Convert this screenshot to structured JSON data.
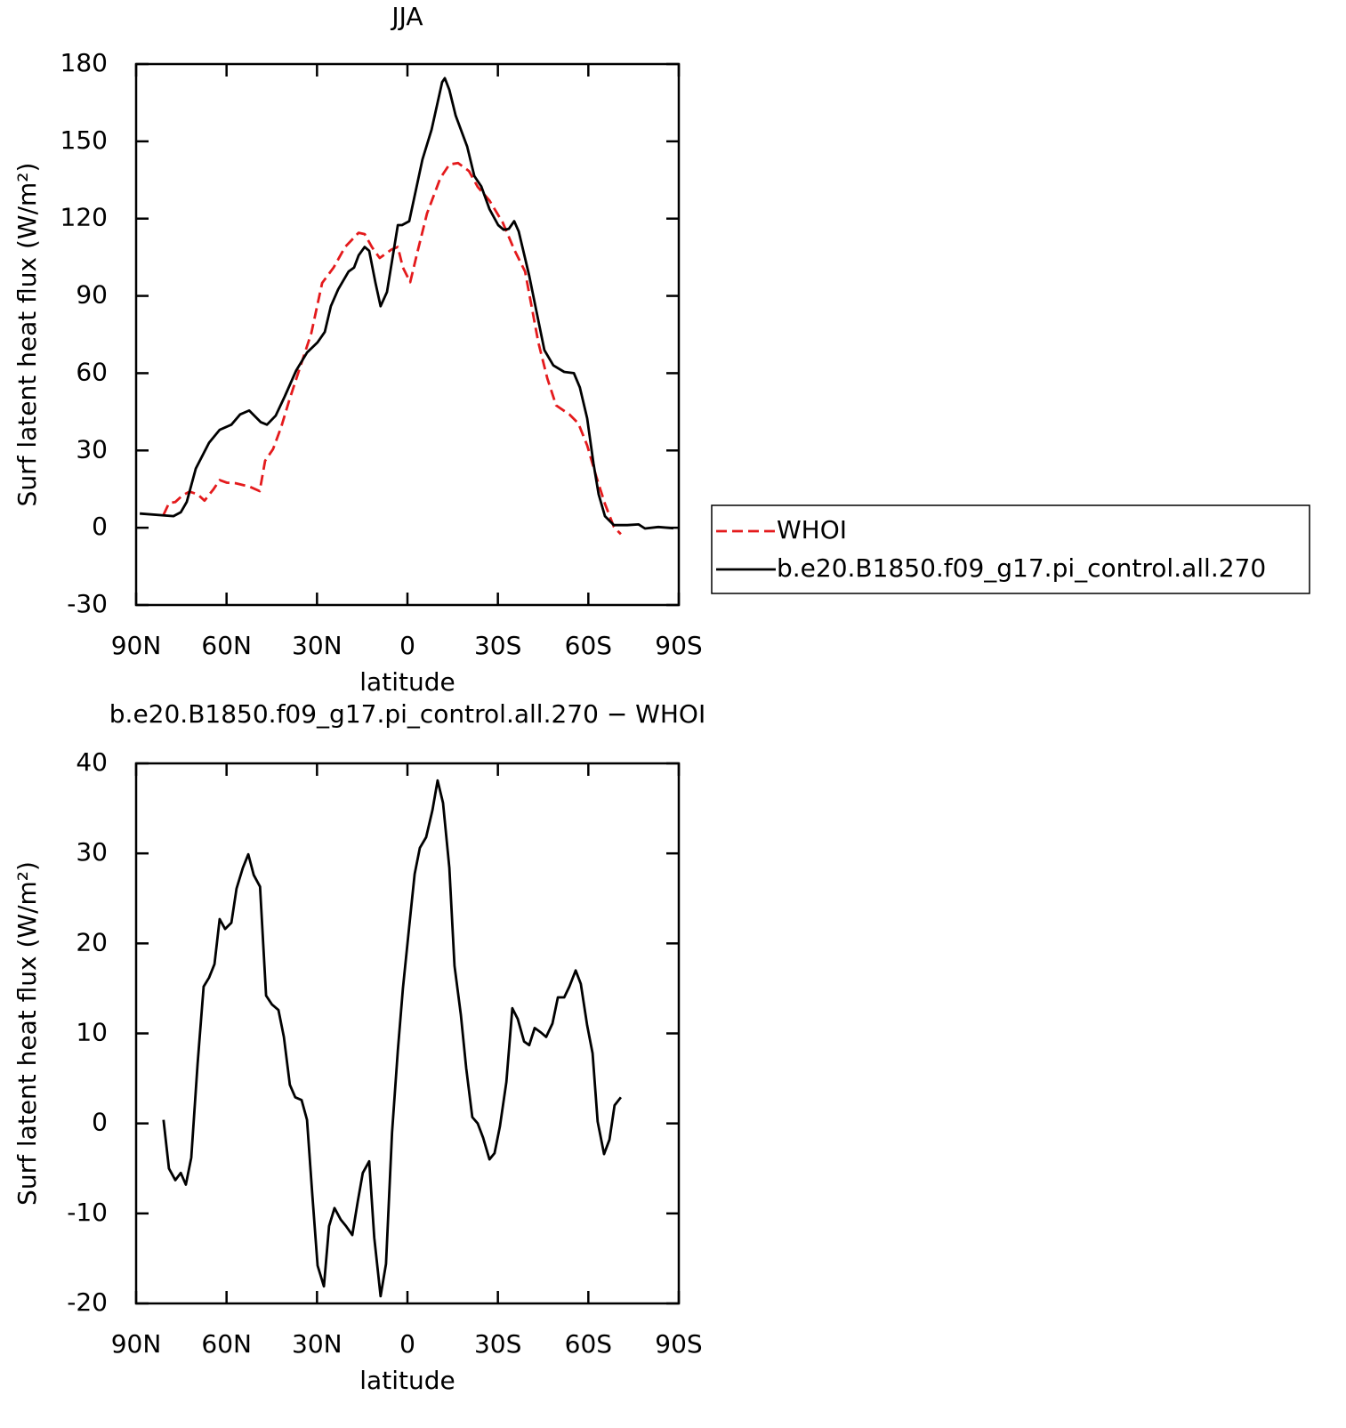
{
  "chart_data": [
    {
      "type": "line",
      "title": "JJA",
      "xlabel": "latitude",
      "ylabel": "Surf latent heat flux (W/m²)",
      "xlim": [
        90,
        -90
      ],
      "xticks": [
        {
          "value": 90,
          "label": "90N"
        },
        {
          "value": 60,
          "label": "60N"
        },
        {
          "value": 30,
          "label": "30N"
        },
        0,
        {
          "value": -30,
          "label": "30S"
        },
        {
          "value": -60,
          "label": "60S"
        },
        {
          "value": -90,
          "label": "90S"
        }
      ],
      "ylim": [
        -30,
        180
      ],
      "yticks": [
        -30,
        0,
        30,
        60,
        90,
        120,
        150,
        180
      ],
      "legend": "right",
      "series": [
        {
          "name": "WHOI",
          "color": "#e41a1c",
          "dash": true,
          "x": [
            80.9,
            79.1,
            77,
            74.7,
            72.3,
            69.6,
            67.3,
            64.3,
            62.3,
            59.9,
            57,
            52.5,
            49,
            47.2,
            44.6,
            41.9,
            39.2,
            35.4,
            31.9,
            28.3,
            24.5,
            20.7,
            16.2,
            14.2,
            11.8,
            9.2,
            5.3,
            3.2,
            1.5,
            -0.9,
            -3.5,
            -6.5,
            -10.9,
            -13.9,
            -16.8,
            -20.4,
            -23.3,
            -27.2,
            -31.6,
            -35.4,
            -39,
            -43.4,
            -46.4,
            -49.3,
            -53.7,
            -56.7,
            -59.6,
            -62.6,
            -65.5,
            -68.5,
            -70.8
          ],
          "values": [
            5,
            9.5,
            10,
            12.5,
            14,
            13,
            10.5,
            15,
            18.5,
            17.5,
            17.3,
            16,
            14.2,
            26,
            30.5,
            39,
            49.5,
            63,
            75.5,
            95,
            101,
            109,
            114.5,
            114,
            109,
            104.7,
            108,
            109,
            101,
            95.3,
            108,
            122,
            135.7,
            141,
            141.6,
            138.5,
            132.3,
            127,
            118.5,
            108,
            99.5,
            72,
            58,
            47.5,
            44,
            40.5,
            32,
            20,
            9.3,
            0.3,
            -2.5
          ]
        },
        {
          "name": "b.e20.B1850.f09_g17.pi_control.all.270",
          "color": "#000000",
          "dash": false,
          "x": [
            88.8,
            77.6,
            75.2,
            73.2,
            70.2,
            65.8,
            62.3,
            58.4,
            55.5,
            52.5,
            48.7,
            46.6,
            43.7,
            40.7,
            36.9,
            33.3,
            29.8,
            27.4,
            25.4,
            23,
            19.5,
            17.7,
            16.2,
            14.2,
            12.7,
            10.6,
            8.9,
            6.8,
            3.2,
            1.8,
            -0.6,
            -5,
            -8,
            -11.5,
            -12.4,
            -13.9,
            -16,
            -19.8,
            -22.2,
            -24.5,
            -27.2,
            -30.1,
            -31.9,
            -33.6,
            -35.4,
            -36.9,
            -40.4,
            -42.8,
            -45.4,
            -48.4,
            -52,
            -55.2,
            -57.2,
            -59.6,
            -61.7,
            -63.4,
            -65.5,
            -68.5,
            -72.9,
            -76.7,
            -78.8,
            -83.2,
            -88.2
          ],
          "values": [
            5.5,
            4.5,
            6,
            10,
            23,
            33,
            38,
            40,
            44,
            45.5,
            41,
            40,
            43.5,
            51,
            61,
            68,
            72,
            76,
            86,
            92.5,
            99.5,
            101,
            105.7,
            109,
            107.5,
            95,
            86,
            91.5,
            117.5,
            117.5,
            119,
            143,
            154.5,
            173,
            174.5,
            170,
            160,
            148,
            136.5,
            132.5,
            123.7,
            117.5,
            115.7,
            116,
            119,
            115,
            97.8,
            84,
            69,
            63,
            60.5,
            60,
            54.5,
            42.5,
            25,
            13,
            4.5,
            1,
            1,
            1.3,
            -0.3,
            0.3,
            -0.2
          ]
        }
      ]
    },
    {
      "type": "line",
      "title": "b.e20.B1850.f09_g17.pi_control.all.270 − WHOI",
      "xlabel": "latitude",
      "ylabel": "Surf latent heat flux (W/m²)",
      "xlim": [
        90,
        -90
      ],
      "xticks": [
        {
          "value": 90,
          "label": "90N"
        },
        {
          "value": 60,
          "label": "60N"
        },
        {
          "value": 30,
          "label": "30N"
        },
        0,
        {
          "value": -30,
          "label": "30S"
        },
        {
          "value": -60,
          "label": "60S"
        },
        {
          "value": -90,
          "label": "90S"
        }
      ],
      "ylim": [
        -20,
        40
      ],
      "yticks": [
        -20,
        -10,
        0,
        10,
        20,
        30,
        40
      ],
      "series": [
        {
          "color": "#000000",
          "dash": false,
          "x": [
            80.9,
            79.1,
            77,
            75.2,
            73.5,
            71.7,
            69.6,
            67.6,
            65.8,
            64,
            62.3,
            60.5,
            58.4,
            56.7,
            54.6,
            52.8,
            51,
            48.9,
            46.9,
            44.9,
            42.8,
            41,
            39,
            37.2,
            35.1,
            33.3,
            31.6,
            29.8,
            27.7,
            26,
            24.2,
            22.1,
            20.4,
            18.3,
            16.5,
            14.8,
            12.7,
            11,
            8.9,
            7.1,
            5.1,
            3.2,
            1.5,
            -0.6,
            -2.4,
            -4.1,
            -6.2,
            -8.3,
            -10,
            -11.8,
            -13.9,
            -15.6,
            -17.7,
            -19.5,
            -21.5,
            -23.3,
            -25.1,
            -27.2,
            -28.9,
            -30.7,
            -32.8,
            -34.8,
            -36.6,
            -38.7,
            -40.4,
            -42.2,
            -44.3,
            -46,
            -48.1,
            -49.9,
            -52,
            -53.7,
            -55.8,
            -57.5,
            -59.6,
            -61.4,
            -63.1,
            -65.2,
            -67,
            -68.7,
            -70.8
          ],
          "values": [
            0.4,
            -5,
            -6.3,
            -5.5,
            -6.8,
            -3.8,
            6.6,
            15.2,
            16.2,
            17.7,
            22.7,
            21.6,
            22.3,
            26.1,
            28.4,
            29.9,
            27.6,
            26.3,
            14.2,
            13.2,
            12.6,
            9.6,
            4.3,
            2.9,
            2.6,
            0.4,
            -7.7,
            -15.8,
            -18.1,
            -11.4,
            -9.4,
            -10.7,
            -11.4,
            -12.4,
            -8.7,
            -5.5,
            -4.2,
            -12.7,
            -19.2,
            -15.6,
            -1,
            8.1,
            15,
            21.9,
            27.7,
            30.6,
            31.8,
            34.8,
            38.1,
            35.6,
            28.4,
            17.5,
            12.1,
            6.1,
            0.7,
            0,
            -1.6,
            -4,
            -3.3,
            -0.3,
            4.6,
            12.8,
            11.6,
            9.1,
            8.7,
            10.6,
            10.1,
            9.6,
            11.1,
            14,
            14,
            15.2,
            17,
            15.5,
            10.9,
            7.8,
            0.2,
            -3.4,
            -1.8,
            2,
            2.9
          ]
        }
      ]
    }
  ]
}
